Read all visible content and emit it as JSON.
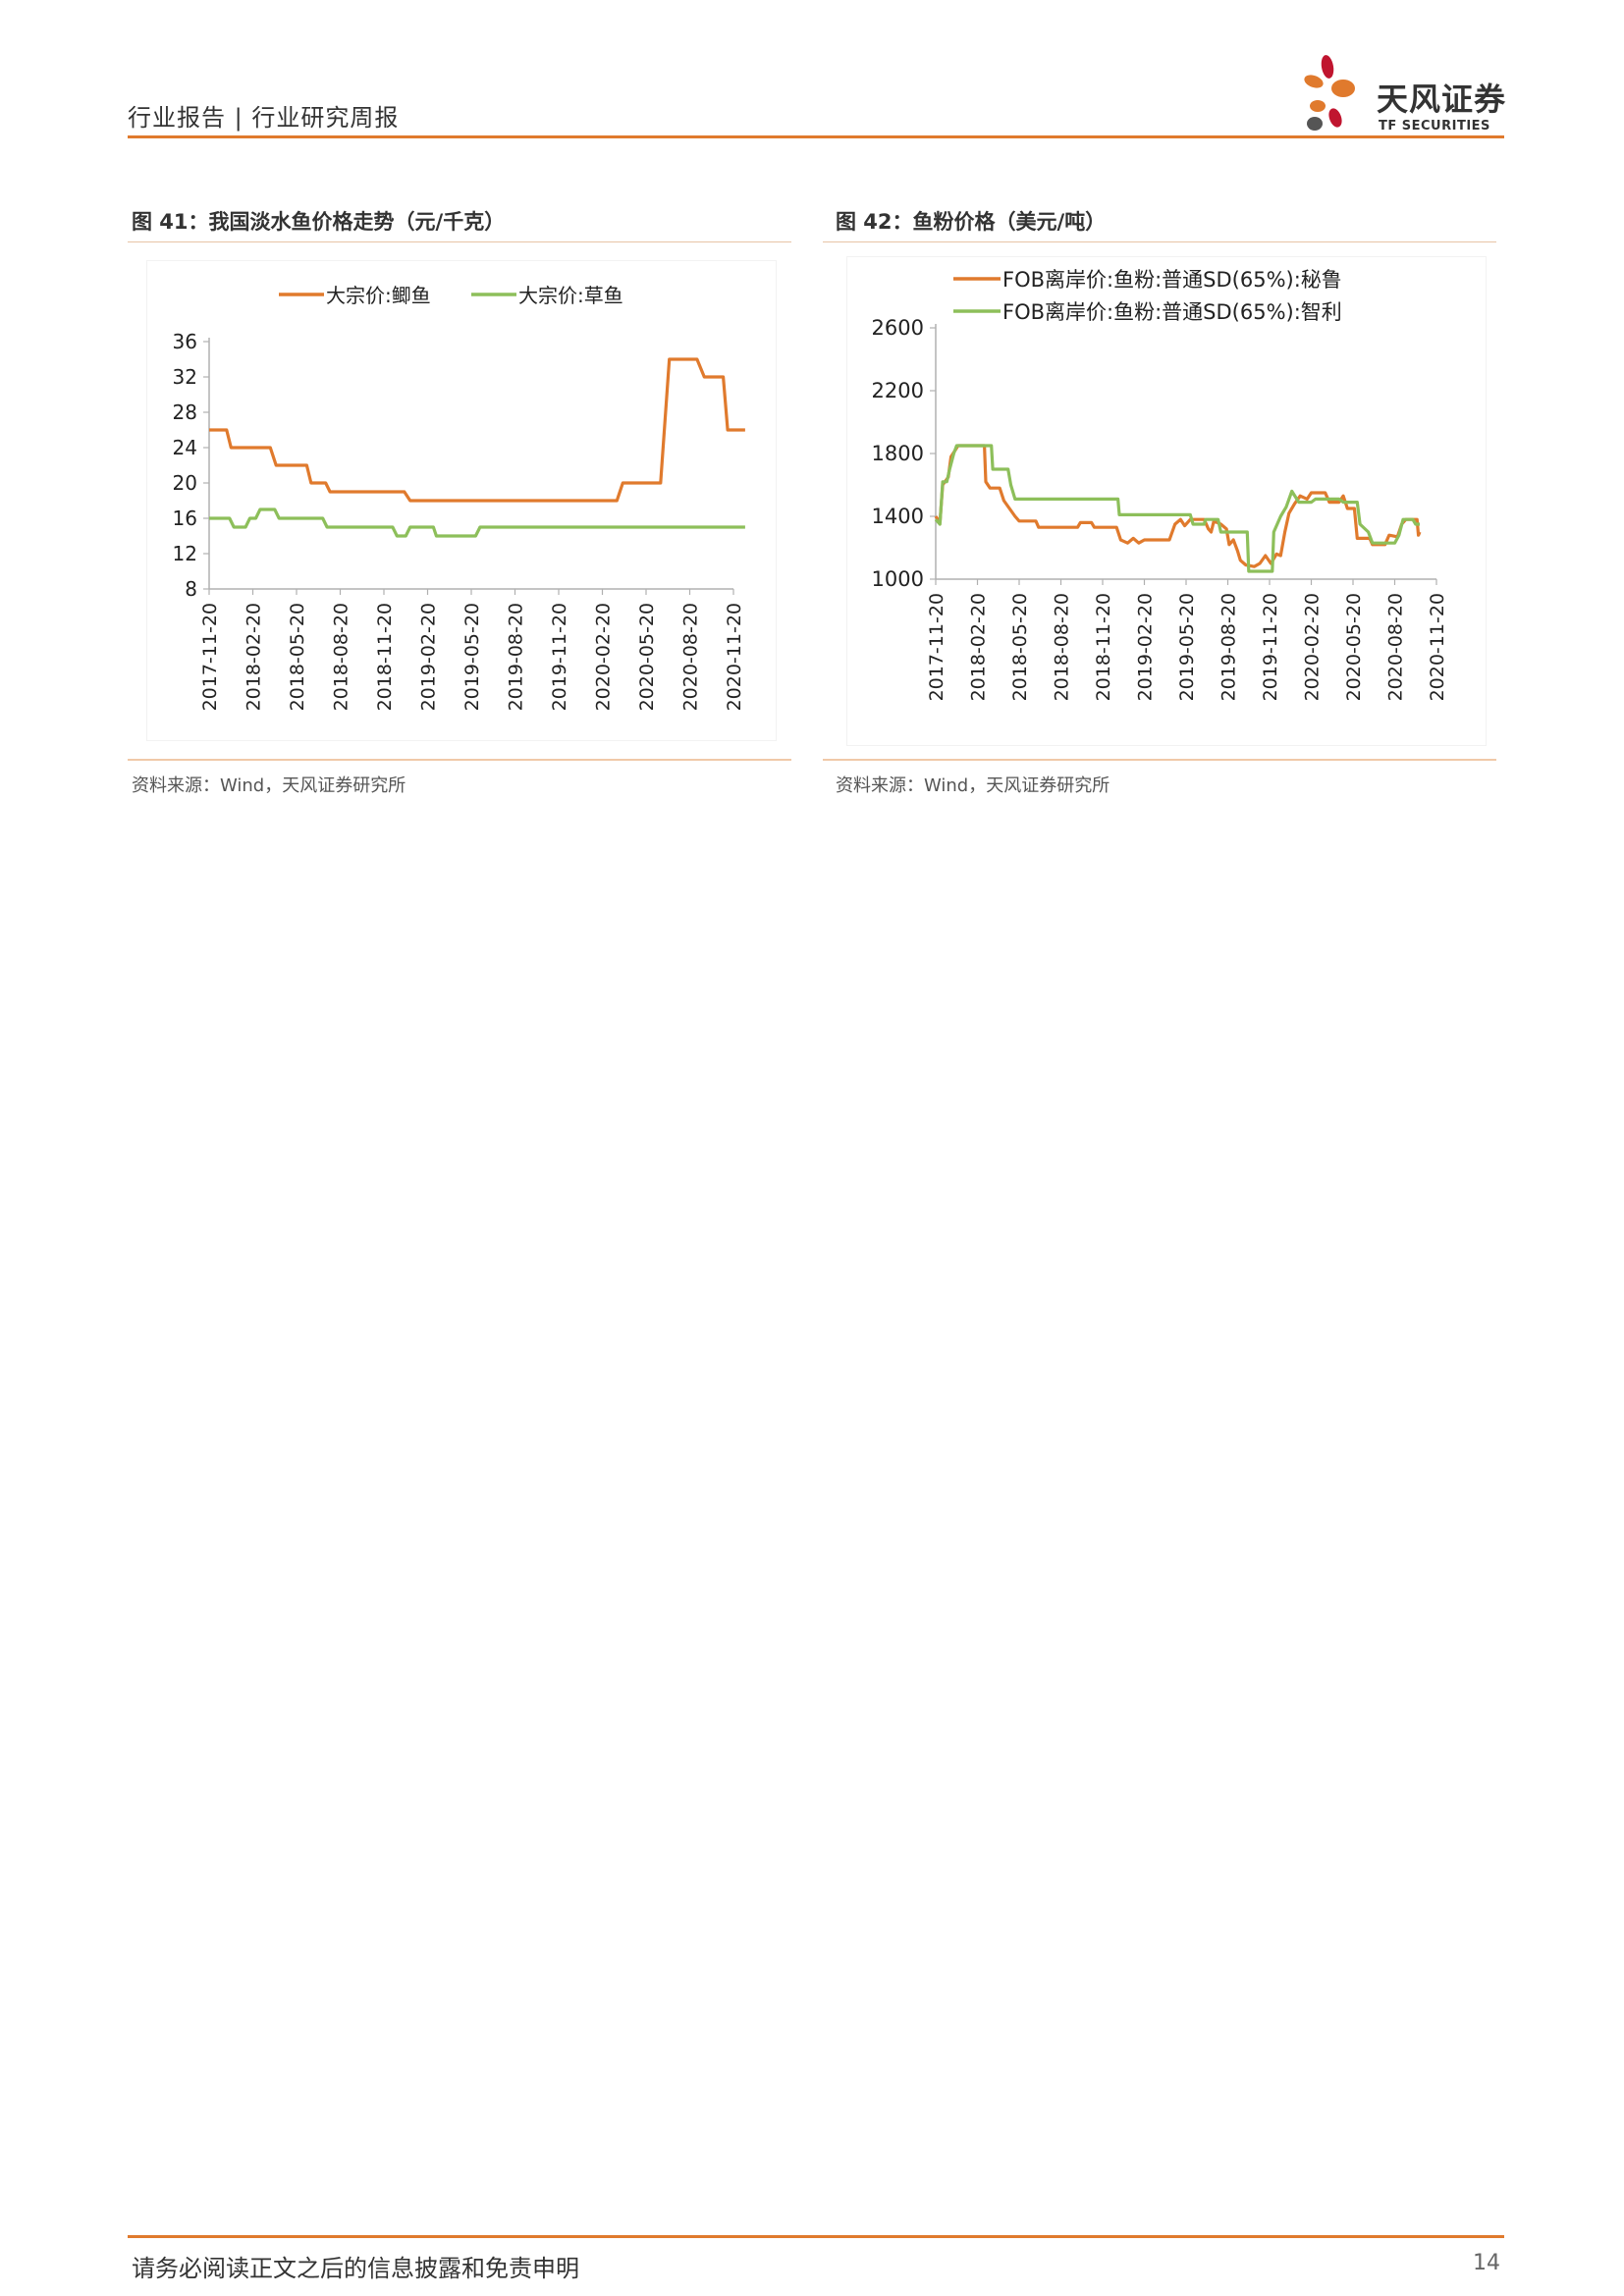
{
  "header": {
    "report_type": "行业报告 | 行业研究周报",
    "logo_name": "天风证券",
    "logo_sub": "TF SECURITIES",
    "accent_color": "#e07a2d"
  },
  "figures": [
    {
      "title": "图 41：我国淡水鱼价格走势（元/千克）",
      "source": "资料来源：Wind，天风证券研究所"
    },
    {
      "title": "图 42：鱼粉价格（美元/吨）",
      "source": "资料来源：Wind，天风证券研究所"
    }
  ],
  "chart_data": [
    {
      "type": "line",
      "title": "",
      "ylim": [
        8,
        36
      ],
      "yticks": [
        8,
        12,
        16,
        20,
        24,
        28,
        32,
        36
      ],
      "xticks": [
        "2017-11-20",
        "2018-02-20",
        "2018-05-20",
        "2018-08-20",
        "2018-11-20",
        "2019-02-20",
        "2019-05-20",
        "2019-08-20",
        "2019-11-20",
        "2020-02-20",
        "2020-05-20",
        "2020-08-20",
        "2020-11-20"
      ],
      "legend_position": "top",
      "grid": false,
      "series": [
        {
          "name": "大宗价:鲫鱼",
          "color": "#e07a2d",
          "points": [
            [
              0,
              26
            ],
            [
              1.2,
              26
            ],
            [
              1.5,
              24
            ],
            [
              4.2,
              24
            ],
            [
              4.6,
              22
            ],
            [
              6.7,
              22
            ],
            [
              7.0,
              20
            ],
            [
              8.0,
              20
            ],
            [
              8.3,
              19
            ],
            [
              13.4,
              19
            ],
            [
              13.8,
              18
            ],
            [
              28.0,
              18
            ],
            [
              28.4,
              20
            ],
            [
              31.0,
              20
            ],
            [
              31.6,
              34
            ],
            [
              33.5,
              34
            ],
            [
              34.0,
              32
            ],
            [
              35.3,
              32
            ],
            [
              35.6,
              26
            ],
            [
              36.8,
              26
            ]
          ]
        },
        {
          "name": "大宗价:草鱼",
          "color": "#8dbf5a",
          "points": [
            [
              0,
              16
            ],
            [
              1.4,
              16
            ],
            [
              1.7,
              15
            ],
            [
              2.5,
              15
            ],
            [
              2.8,
              16
            ],
            [
              3.2,
              16
            ],
            [
              3.5,
              17
            ],
            [
              4.5,
              17
            ],
            [
              4.8,
              16
            ],
            [
              7.8,
              16
            ],
            [
              8.1,
              15
            ],
            [
              12.6,
              15
            ],
            [
              12.9,
              14
            ],
            [
              13.5,
              14
            ],
            [
              13.8,
              15
            ],
            [
              15.4,
              15
            ],
            [
              15.6,
              14
            ],
            [
              18.3,
              14
            ],
            [
              18.6,
              15
            ],
            [
              36.8,
              15
            ]
          ]
        }
      ]
    },
    {
      "type": "line",
      "title": "",
      "ylim": [
        1000,
        2600
      ],
      "yticks": [
        1000,
        1400,
        1800,
        2200,
        2600
      ],
      "xticks": [
        "2017-11-20",
        "2018-02-20",
        "2018-05-20",
        "2018-08-20",
        "2018-11-20",
        "2019-02-20",
        "2019-05-20",
        "2019-08-20",
        "2019-11-20",
        "2020-02-20",
        "2020-05-20",
        "2020-08-20",
        "2020-11-20"
      ],
      "legend_position": "top-left",
      "grid": false,
      "series": [
        {
          "name": "FOB离岸价:鱼粉:普通SD(65%):秘鲁",
          "color": "#e07a2d",
          "points": [
            [
              0,
              1400
            ],
            [
              0.3,
              1360
            ],
            [
              0.5,
              1600
            ],
            [
              0.9,
              1650
            ],
            [
              1.1,
              1780
            ],
            [
              1.4,
              1820
            ],
            [
              1.6,
              1850
            ],
            [
              3.5,
              1850
            ],
            [
              3.6,
              1620
            ],
            [
              3.9,
              1580
            ],
            [
              4.6,
              1580
            ],
            [
              4.9,
              1500
            ],
            [
              5.3,
              1450
            ],
            [
              5.7,
              1400
            ],
            [
              6.0,
              1370
            ],
            [
              7.2,
              1370
            ],
            [
              7.4,
              1330
            ],
            [
              10.2,
              1330
            ],
            [
              10.4,
              1360
            ],
            [
              11.2,
              1360
            ],
            [
              11.4,
              1330
            ],
            [
              13.0,
              1330
            ],
            [
              13.3,
              1250
            ],
            [
              13.8,
              1230
            ],
            [
              14.2,
              1260
            ],
            [
              14.6,
              1230
            ],
            [
              15.0,
              1250
            ],
            [
              16.8,
              1250
            ],
            [
              17.2,
              1350
            ],
            [
              17.6,
              1380
            ],
            [
              17.9,
              1340
            ],
            [
              18.3,
              1380
            ],
            [
              19.3,
              1380
            ],
            [
              19.6,
              1320
            ],
            [
              19.8,
              1300
            ],
            [
              20.0,
              1370
            ],
            [
              20.5,
              1350
            ],
            [
              20.9,
              1320
            ],
            [
              21.1,
              1220
            ],
            [
              21.4,
              1250
            ],
            [
              21.7,
              1180
            ],
            [
              21.9,
              1120
            ],
            [
              22.3,
              1090
            ],
            [
              22.9,
              1080
            ],
            [
              23.3,
              1100
            ],
            [
              23.7,
              1150
            ],
            [
              24.1,
              1100
            ],
            [
              24.5,
              1160
            ],
            [
              24.8,
              1150
            ],
            [
              25.1,
              1300
            ],
            [
              25.4,
              1420
            ],
            [
              25.8,
              1480
            ],
            [
              26.2,
              1530
            ],
            [
              26.7,
              1510
            ],
            [
              27.0,
              1550
            ],
            [
              28.0,
              1550
            ],
            [
              28.3,
              1490
            ],
            [
              29.0,
              1490
            ],
            [
              29.3,
              1530
            ],
            [
              29.6,
              1450
            ],
            [
              30.1,
              1450
            ],
            [
              30.3,
              1260
            ],
            [
              31.2,
              1260
            ],
            [
              31.4,
              1220
            ],
            [
              32.3,
              1220
            ],
            [
              32.6,
              1280
            ],
            [
              33.2,
              1270
            ],
            [
              33.5,
              1350
            ],
            [
              33.8,
              1380
            ],
            [
              34.6,
              1380
            ],
            [
              34.7,
              1280
            ],
            [
              34.8,
              1300
            ]
          ]
        },
        {
          "name": "FOB离岸价:鱼粉:普通SD(65%):智利",
          "color": "#8dbf5a",
          "points": [
            [
              0,
              1380
            ],
            [
              0.3,
              1350
            ],
            [
              0.5,
              1620
            ],
            [
              0.8,
              1620
            ],
            [
              1.0,
              1700
            ],
            [
              1.3,
              1800
            ],
            [
              1.5,
              1850
            ],
            [
              4.0,
              1850
            ],
            [
              4.1,
              1700
            ],
            [
              5.2,
              1700
            ],
            [
              5.4,
              1600
            ],
            [
              5.7,
              1510
            ],
            [
              13.1,
              1510
            ],
            [
              13.2,
              1410
            ],
            [
              18.3,
              1410
            ],
            [
              18.5,
              1350
            ],
            [
              19.3,
              1350
            ],
            [
              19.4,
              1380
            ],
            [
              20.3,
              1380
            ],
            [
              20.5,
              1300
            ],
            [
              22.4,
              1300
            ],
            [
              22.5,
              1050
            ],
            [
              24.2,
              1050
            ],
            [
              24.3,
              1300
            ],
            [
              24.8,
              1400
            ],
            [
              25.2,
              1460
            ],
            [
              25.6,
              1560
            ],
            [
              26.1,
              1490
            ],
            [
              27.0,
              1490
            ],
            [
              27.3,
              1510
            ],
            [
              29.0,
              1510
            ],
            [
              29.3,
              1490
            ],
            [
              30.3,
              1490
            ],
            [
              30.5,
              1350
            ],
            [
              31.1,
              1300
            ],
            [
              31.4,
              1230
            ],
            [
              33.0,
              1230
            ],
            [
              33.3,
              1280
            ],
            [
              33.6,
              1380
            ],
            [
              34.3,
              1380
            ],
            [
              34.5,
              1350
            ],
            [
              34.8,
              1350
            ]
          ]
        }
      ]
    }
  ],
  "footer": {
    "disclaimer": "请务必阅读正文之后的信息披露和免责申明",
    "page_number": "14"
  }
}
